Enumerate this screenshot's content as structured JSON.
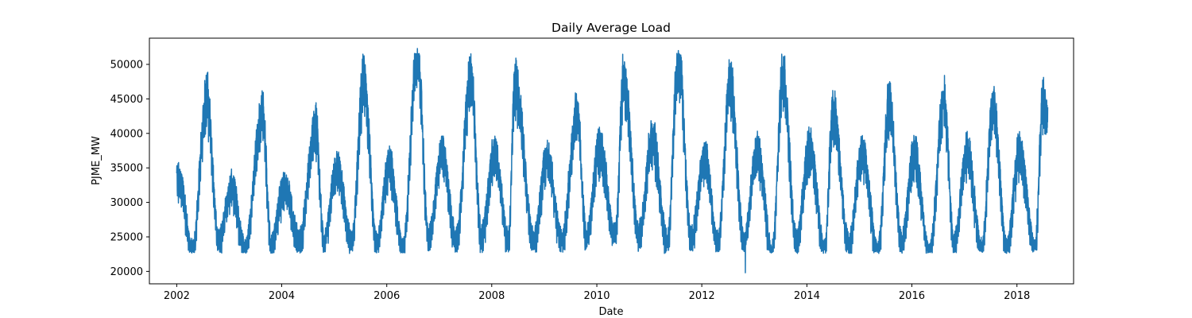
{
  "chart_data": {
    "type": "line",
    "title": "Daily Average Load",
    "xlabel": "Date",
    "ylabel": "PJME_MW",
    "xlim": [
      "2001-06-25",
      "2019-01-30"
    ],
    "ylim": [
      18200,
      53800
    ],
    "x_ticks": [
      "2002",
      "2004",
      "2006",
      "2008",
      "2010",
      "2012",
      "2014",
      "2016",
      "2018"
    ],
    "y_ticks": [
      20000,
      25000,
      30000,
      35000,
      40000,
      45000,
      50000
    ],
    "grid": false,
    "series": [
      {
        "color": "#1f77b4",
        "x_start": "2002-01-01",
        "x_end": "2018-08-03",
        "frequency": "daily",
        "approx_range": [
          19800,
          52300
        ],
        "min_annotation": {
          "x": "2012-10-30",
          "y": 19800
        },
        "yearly_peaks": [
          {
            "x": "2002-07-29",
            "y": 45800
          },
          {
            "x": "2003-08-21",
            "y": 43400
          },
          {
            "x": "2004-08-26",
            "y": 41700
          },
          {
            "x": "2005-07-26",
            "y": 48400
          },
          {
            "x": "2006-08-02",
            "y": 52300
          },
          {
            "x": "2007-08-08",
            "y": 48900
          },
          {
            "x": "2008-06-10",
            "y": 47800
          },
          {
            "x": "2009-08-17",
            "y": 43500
          },
          {
            "x": "2010-07-07",
            "y": 48800
          },
          {
            "x": "2011-07-22",
            "y": 52000
          },
          {
            "x": "2012-07-17",
            "y": 48000
          },
          {
            "x": "2013-07-18",
            "y": 49200
          },
          {
            "x": "2014-07-02",
            "y": 44000
          },
          {
            "x": "2015-07-29",
            "y": 45400
          },
          {
            "x": "2016-08-12",
            "y": 45300
          },
          {
            "x": "2017-07-20",
            "y": 44800
          },
          {
            "x": "2018-07-01",
            "y": 45200
          }
        ],
        "yearly_troughs": [
          {
            "x": "2002-04-20",
            "y": 23000
          },
          {
            "x": "2003-04-18",
            "y": 23300
          },
          {
            "x": "2004-05-03",
            "y": 24700
          },
          {
            "x": "2005-05-01",
            "y": 24400
          },
          {
            "x": "2006-04-23",
            "y": 23500
          },
          {
            "x": "2007-04-29",
            "y": 24800
          },
          {
            "x": "2008-04-27",
            "y": 24800
          },
          {
            "x": "2009-05-03",
            "y": 24800
          },
          {
            "x": "2010-05-09",
            "y": 25300
          },
          {
            "x": "2011-05-08",
            "y": 24700
          },
          {
            "x": "2012-04-22",
            "y": 24300
          },
          {
            "x": "2013-05-05",
            "y": 23000
          },
          {
            "x": "2014-05-04",
            "y": 23300
          },
          {
            "x": "2015-05-10",
            "y": 23100
          },
          {
            "x": "2016-05-01",
            "y": 22800
          },
          {
            "x": "2017-04-30",
            "y": 23300
          },
          {
            "x": "2018-05-06",
            "y": 23500
          }
        ]
      }
    ]
  }
}
